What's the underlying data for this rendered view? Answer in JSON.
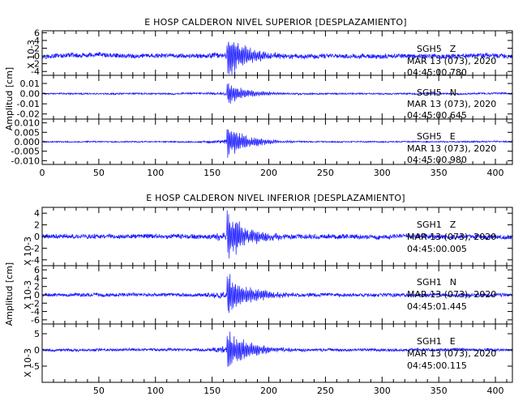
{
  "figure": {
    "colors": {
      "trace": "#1a1aff",
      "axis": "#000000",
      "background": "#ffffff"
    }
  },
  "chart_data": [
    {
      "type": "line",
      "title": "E HOSP CALDERON NIVEL SUPERIOR [DESPLAZAMIENTO]",
      "ylabel": "Amplitud [cm]",
      "x_ticks": [
        "0",
        "50",
        "100",
        "150",
        "200",
        "250",
        "300",
        "350",
        "400"
      ],
      "xlim": [
        0,
        415
      ],
      "panels": [
        {
          "station": "SGH5",
          "component": "Z",
          "date": "MAR 13 (073), 2020",
          "time": "04:45:00.780",
          "scale_label": "X 10-3",
          "y_ticks": [
            "6",
            "4",
            "2",
            "0",
            "-2",
            "-4"
          ],
          "ylim": [
            -5,
            6.5
          ],
          "noise": 0.7,
          "peak": 6.2,
          "event_onset": 163
        },
        {
          "station": "SGH5",
          "component": "N",
          "date": "MAR 13 (073), 2020",
          "time": "04:45:00.645",
          "scale_label": "",
          "y_ticks": [
            "0.01",
            "0.00",
            "-0.01",
            "-0.02"
          ],
          "ylim": [
            -0.025,
            0.018
          ],
          "noise": 0.0009,
          "peak": 0.012,
          "event_onset": 163
        },
        {
          "station": "SGH5",
          "component": "E",
          "date": "MAR 13 (073), 2020",
          "time": "04:45:00.980",
          "scale_label": "",
          "y_ticks": [
            "0.010",
            "0.005",
            "0.000",
            "-0.005",
            "-0.010"
          ],
          "ylim": [
            -0.012,
            0.012
          ],
          "noise": 0.0004,
          "peak": 0.01,
          "event_onset": 163
        }
      ]
    },
    {
      "type": "line",
      "title": "E HOSP CALDERON NIVEL INFERIOR [DESPLAZAMIENTO]",
      "ylabel": "Amplitud [cm]",
      "x_ticks": [
        "50",
        "100",
        "150",
        "200",
        "250",
        "300",
        "350",
        "400"
      ],
      "xlim": [
        0,
        415
      ],
      "panels": [
        {
          "station": "SGH1",
          "component": "Z",
          "date": "MAR 13 (073), 2020",
          "time": "04:45:00.005",
          "scale_label": "X 10-3",
          "y_ticks": [
            "4",
            "2",
            "0",
            "-2",
            "-4"
          ],
          "ylim": [
            -5,
            5
          ],
          "noise": 0.45,
          "peak": 4.8,
          "event_onset": 163
        },
        {
          "station": "SGH1",
          "component": "N",
          "date": "MAR 13 (073), 2020",
          "time": "04:45:01.445",
          "scale_label": "X 10-3",
          "y_ticks": [
            "6",
            "4",
            "2",
            "0",
            "-2",
            "-4",
            "-6"
          ],
          "ylim": [
            -7,
            7
          ],
          "noise": 0.5,
          "peak": 6.0,
          "event_onset": 163
        },
        {
          "station": "SGH1",
          "component": "E",
          "date": "MAR 13 (073), 2020",
          "time": "04:45:00.115",
          "scale_label": "X 10-3",
          "y_ticks": [
            "5",
            "0",
            "-5"
          ],
          "ylim": [
            -10,
            8
          ],
          "noise": 0.5,
          "peak": 7.5,
          "event_onset": 163
        }
      ]
    }
  ]
}
